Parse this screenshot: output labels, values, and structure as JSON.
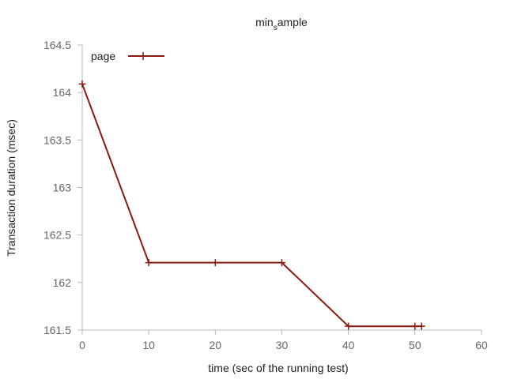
{
  "chart_data": {
    "type": "line",
    "title_main": "min",
    "title_sub": "s",
    "title_rest": "ample",
    "xlabel": "time (sec of the running test)",
    "ylabel": "Transaction duration (msec)",
    "xlim": [
      0,
      60
    ],
    "ylim": [
      161.5,
      164.5
    ],
    "xticks": [
      0,
      10,
      20,
      30,
      40,
      50,
      60
    ],
    "yticks": [
      161.5,
      162,
      162.5,
      163,
      163.5,
      164,
      164.5
    ],
    "xtick_labels": [
      "0",
      "10",
      "20",
      "30",
      "40",
      "50",
      "60"
    ],
    "ytick_labels": [
      "161.5",
      "162",
      "162.5",
      "163",
      "163.5",
      "164",
      "164.5"
    ],
    "grid": false,
    "legend_position": "top-left",
    "series": [
      {
        "name": "page",
        "color": "#8b1a10",
        "marker": "plus",
        "x": [
          0,
          10,
          20,
          30,
          40,
          50,
          51
        ],
        "y": [
          164.09,
          162.21,
          162.21,
          162.21,
          161.54,
          161.54,
          161.54
        ]
      }
    ]
  }
}
